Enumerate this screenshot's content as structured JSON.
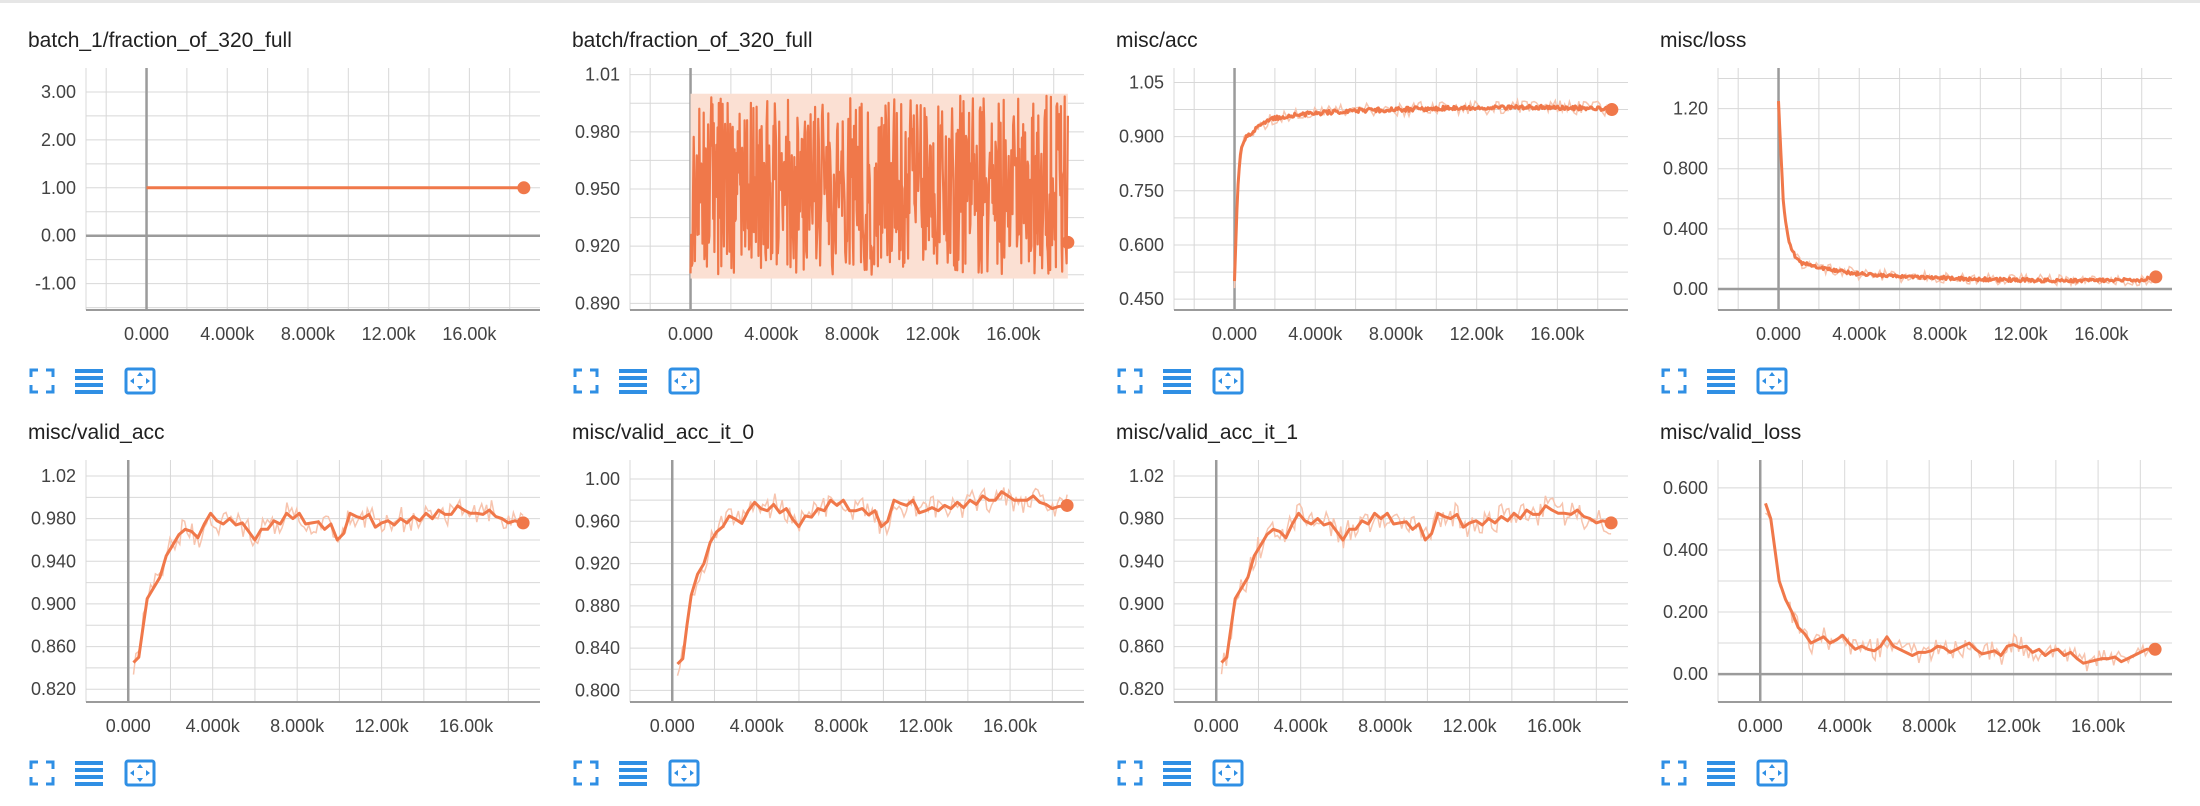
{
  "theme": {
    "line": "#f0784a",
    "smoothed_raw": "#f7c4ae",
    "band": "#fbe0d3",
    "grid": "#d8d8d8",
    "axis": "#9b9b9b",
    "icon": "#2f8fe4"
  },
  "toolbar_icons": [
    "expand-icon",
    "list-icon",
    "fit-domain-icon"
  ],
  "x_ticks": [
    "0.000",
    "4.000k",
    "8.000k",
    "12.00k",
    "16.00k"
  ],
  "chart_data": [
    {
      "type": "line",
      "title": "batch_1/fraction_of_320_full",
      "xlim": [
        -3000,
        19500
      ],
      "ylim": [
        -1.55,
        3.5
      ],
      "y_ticks": [
        {
          "v": 3,
          "label": "3.00"
        },
        {
          "v": 2,
          "label": "2.00"
        },
        {
          "v": 1,
          "label": "1.00"
        },
        {
          "v": 0,
          "label": "0.00"
        },
        {
          "v": -1,
          "label": "-1.00"
        }
      ],
      "noise": 0,
      "smooth_noise": 0,
      "band": null,
      "series": [
        {
          "x": [
            0,
            18700
          ],
          "y": [
            1.0,
            1.0
          ]
        }
      ]
    },
    {
      "type": "line",
      "title": "batch/fraction_of_320_full",
      "xlim": [
        -3000,
        19500
      ],
      "ylim": [
        0.8865,
        1.0135
      ],
      "y_ticks": [
        {
          "v": 1.01,
          "label": "1.01"
        },
        {
          "v": 0.98,
          "label": "0.980"
        },
        {
          "v": 0.95,
          "label": "0.950"
        },
        {
          "v": 0.92,
          "label": "0.920"
        },
        {
          "v": 0.89,
          "label": "0.890"
        }
      ],
      "noise": 0,
      "smooth_noise": 0,
      "band": [
        0.903,
        1.0
      ],
      "noisy_range": [
        0.905,
        0.999
      ],
      "noisy_n": 600,
      "series": [
        {
          "x": [
            18700
          ],
          "y": [
            0.922
          ]
        }
      ]
    },
    {
      "type": "line",
      "title": "misc/acc",
      "xlim": [
        -3000,
        19500
      ],
      "ylim": [
        0.42,
        1.09
      ],
      "y_ticks": [
        {
          "v": 1.05,
          "label": "1.05"
        },
        {
          "v": 0.9,
          "label": "0.900"
        },
        {
          "v": 0.75,
          "label": "0.750"
        },
        {
          "v": 0.6,
          "label": "0.600"
        },
        {
          "v": 0.45,
          "label": "0.450"
        }
      ],
      "noise": 0.006,
      "smooth_noise": 0.02,
      "band": null,
      "series": [
        {
          "x": [
            0,
            150,
            300,
            600,
            1000,
            1500,
            2000,
            3000,
            4000,
            6000,
            8000,
            10000,
            12000,
            14000,
            16000,
            18000,
            18700
          ],
          "y": [
            0.5,
            0.75,
            0.86,
            0.9,
            0.92,
            0.94,
            0.95,
            0.96,
            0.965,
            0.972,
            0.975,
            0.978,
            0.98,
            0.982,
            0.98,
            0.979,
            0.975
          ]
        }
      ]
    },
    {
      "type": "line",
      "title": "misc/loss",
      "xlim": [
        -3000,
        19500
      ],
      "ylim": [
        -0.14,
        1.47
      ],
      "y_ticks": [
        {
          "v": 1.2,
          "label": "1.20"
        },
        {
          "v": 0.8,
          "label": "0.800"
        },
        {
          "v": 0.4,
          "label": "0.400"
        },
        {
          "v": 0.0,
          "label": "0.00"
        }
      ],
      "noise": 0.012,
      "smooth_noise": 0.04,
      "band": null,
      "series": [
        {
          "x": [
            0,
            100,
            250,
            500,
            800,
            1200,
            2000,
            3000,
            4000,
            6000,
            8000,
            10000,
            12000,
            14000,
            16000,
            18000,
            18700
          ],
          "y": [
            1.25,
            0.95,
            0.55,
            0.32,
            0.22,
            0.17,
            0.14,
            0.12,
            0.1,
            0.085,
            0.075,
            0.065,
            0.06,
            0.055,
            0.055,
            0.06,
            0.08
          ]
        }
      ]
    },
    {
      "type": "line",
      "title": "misc/valid_acc",
      "xlim": [
        -2000,
        19500
      ],
      "ylim": [
        0.808,
        1.035
      ],
      "y_ticks": [
        {
          "v": 1.02,
          "label": "1.02"
        },
        {
          "v": 0.98,
          "label": "0.980"
        },
        {
          "v": 0.94,
          "label": "0.940"
        },
        {
          "v": 0.9,
          "label": "0.900"
        },
        {
          "v": 0.86,
          "label": "0.860"
        },
        {
          "v": 0.82,
          "label": "0.820"
        }
      ],
      "noise": 0,
      "smooth_noise": 0.012,
      "band": null,
      "series": [
        {
          "x": [
            250,
            500,
            700,
            900,
            1200,
            1500,
            1800,
            2100,
            2400,
            2700,
            3000,
            3300,
            3600,
            3900,
            4200,
            4500,
            4800,
            5100,
            5400,
            5700,
            6000,
            6300,
            6600,
            6900,
            7200,
            7500,
            7800,
            8100,
            8400,
            8700,
            9000,
            9300,
            9600,
            9900,
            10200,
            10500,
            10800,
            11100,
            11400,
            11700,
            12000,
            12300,
            12600,
            12900,
            13200,
            13500,
            13800,
            14100,
            14400,
            14700,
            15000,
            15300,
            15600,
            15900,
            16200,
            16500,
            16800,
            17100,
            17400,
            17700,
            18000,
            18300,
            18700
          ],
          "y": [
            0.845,
            0.85,
            0.878,
            0.905,
            0.915,
            0.925,
            0.945,
            0.955,
            0.965,
            0.97,
            0.968,
            0.962,
            0.975,
            0.985,
            0.978,
            0.975,
            0.98,
            0.974,
            0.976,
            0.968,
            0.96,
            0.97,
            0.97,
            0.978,
            0.975,
            0.985,
            0.98,
            0.985,
            0.975,
            0.976,
            0.977,
            0.97,
            0.975,
            0.96,
            0.966,
            0.985,
            0.982,
            0.98,
            0.984,
            0.972,
            0.976,
            0.978,
            0.974,
            0.98,
            0.976,
            0.982,
            0.978,
            0.985,
            0.98,
            0.988,
            0.984,
            0.984,
            0.992,
            0.988,
            0.985,
            0.985,
            0.984,
            0.988,
            0.982,
            0.98,
            0.976,
            0.978,
            0.976
          ]
        }
      ]
    },
    {
      "type": "line",
      "title": "misc/valid_acc_it_0",
      "xlim": [
        -2000,
        19500
      ],
      "ylim": [
        0.789,
        1.018
      ],
      "y_ticks": [
        {
          "v": 1.0,
          "label": "1.00"
        },
        {
          "v": 0.96,
          "label": "0.960"
        },
        {
          "v": 0.92,
          "label": "0.920"
        },
        {
          "v": 0.88,
          "label": "0.880"
        },
        {
          "v": 0.84,
          "label": "0.840"
        },
        {
          "v": 0.8,
          "label": "0.800"
        }
      ],
      "noise": 0,
      "smooth_noise": 0.012,
      "band": null,
      "series": [
        {
          "x": [
            250,
            500,
            700,
            900,
            1200,
            1500,
            1800,
            2100,
            2400,
            2700,
            3000,
            3300,
            3600,
            3900,
            4200,
            4500,
            4800,
            5100,
            5400,
            5700,
            6000,
            6300,
            6600,
            6900,
            7200,
            7500,
            7800,
            8100,
            8400,
            8700,
            9000,
            9300,
            9600,
            9900,
            10200,
            10500,
            10800,
            11100,
            11400,
            11700,
            12000,
            12300,
            12600,
            12900,
            13200,
            13500,
            13800,
            14100,
            14400,
            14700,
            15000,
            15300,
            15600,
            15900,
            16200,
            16500,
            16800,
            17100,
            17400,
            17700,
            18000,
            18300,
            18700
          ],
          "y": [
            0.825,
            0.83,
            0.862,
            0.89,
            0.91,
            0.92,
            0.94,
            0.95,
            0.955,
            0.965,
            0.962,
            0.958,
            0.97,
            0.978,
            0.972,
            0.97,
            0.976,
            0.968,
            0.972,
            0.962,
            0.955,
            0.965,
            0.964,
            0.972,
            0.97,
            0.98,
            0.975,
            0.98,
            0.97,
            0.97,
            0.972,
            0.966,
            0.97,
            0.955,
            0.96,
            0.98,
            0.977,
            0.975,
            0.98,
            0.968,
            0.97,
            0.973,
            0.97,
            0.975,
            0.972,
            0.978,
            0.973,
            0.98,
            0.976,
            0.984,
            0.98,
            0.98,
            0.988,
            0.984,
            0.98,
            0.98,
            0.98,
            0.984,
            0.978,
            0.976,
            0.972,
            0.974,
            0.975
          ]
        }
      ]
    },
    {
      "type": "line",
      "title": "misc/valid_acc_it_1",
      "xlim": [
        -2000,
        19500
      ],
      "ylim": [
        0.808,
        1.035
      ],
      "y_ticks": [
        {
          "v": 1.02,
          "label": "1.02"
        },
        {
          "v": 0.98,
          "label": "0.980"
        },
        {
          "v": 0.94,
          "label": "0.940"
        },
        {
          "v": 0.9,
          "label": "0.900"
        },
        {
          "v": 0.86,
          "label": "0.860"
        },
        {
          "v": 0.82,
          "label": "0.820"
        }
      ],
      "noise": 0,
      "smooth_noise": 0.012,
      "band": null,
      "series": [
        {
          "x": [
            250,
            500,
            700,
            900,
            1200,
            1500,
            1800,
            2100,
            2400,
            2700,
            3000,
            3300,
            3600,
            3900,
            4200,
            4500,
            4800,
            5100,
            5400,
            5700,
            6000,
            6300,
            6600,
            6900,
            7200,
            7500,
            7800,
            8100,
            8400,
            8700,
            9000,
            9300,
            9600,
            9900,
            10200,
            10500,
            10800,
            11100,
            11400,
            11700,
            12000,
            12300,
            12600,
            12900,
            13200,
            13500,
            13800,
            14100,
            14400,
            14700,
            15000,
            15300,
            15600,
            15900,
            16200,
            16500,
            16800,
            17100,
            17400,
            17700,
            18000,
            18300,
            18700
          ],
          "y": [
            0.845,
            0.85,
            0.878,
            0.905,
            0.915,
            0.925,
            0.945,
            0.955,
            0.965,
            0.97,
            0.968,
            0.962,
            0.975,
            0.985,
            0.978,
            0.975,
            0.98,
            0.974,
            0.976,
            0.968,
            0.96,
            0.97,
            0.97,
            0.978,
            0.975,
            0.985,
            0.98,
            0.985,
            0.975,
            0.976,
            0.977,
            0.97,
            0.975,
            0.96,
            0.966,
            0.985,
            0.982,
            0.98,
            0.984,
            0.972,
            0.976,
            0.978,
            0.974,
            0.98,
            0.976,
            0.982,
            0.978,
            0.985,
            0.98,
            0.988,
            0.984,
            0.984,
            0.992,
            0.988,
            0.985,
            0.985,
            0.984,
            0.988,
            0.982,
            0.98,
            0.976,
            0.978,
            0.976
          ]
        }
      ]
    },
    {
      "type": "line",
      "title": "misc/valid_loss",
      "xlim": [
        -2000,
        19500
      ],
      "ylim": [
        -0.09,
        0.69
      ],
      "y_ticks": [
        {
          "v": 0.6,
          "label": "0.600"
        },
        {
          "v": 0.4,
          "label": "0.400"
        },
        {
          "v": 0.2,
          "label": "0.200"
        },
        {
          "v": 0.0,
          "label": "0.00"
        }
      ],
      "noise": 0,
      "smooth_noise": 0.035,
      "band": null,
      "series": [
        {
          "x": [
            250,
            500,
            700,
            900,
            1200,
            1500,
            1800,
            2100,
            2400,
            2700,
            3000,
            3300,
            3600,
            3900,
            4200,
            4500,
            4800,
            5100,
            5400,
            5700,
            6000,
            6300,
            6600,
            6900,
            7200,
            7500,
            7800,
            8100,
            8400,
            8700,
            9000,
            9300,
            9600,
            9900,
            10200,
            10500,
            10800,
            11100,
            11400,
            11700,
            12000,
            12300,
            12600,
            12900,
            13200,
            13500,
            13800,
            14100,
            14400,
            14700,
            15000,
            15300,
            15600,
            15900,
            16200,
            16500,
            16800,
            17100,
            17400,
            17700,
            18000,
            18300,
            18700
          ],
          "y": [
            0.55,
            0.5,
            0.4,
            0.3,
            0.24,
            0.2,
            0.15,
            0.13,
            0.1,
            0.11,
            0.12,
            0.1,
            0.11,
            0.125,
            0.1,
            0.08,
            0.09,
            0.08,
            0.075,
            0.09,
            0.12,
            0.09,
            0.08,
            0.07,
            0.06,
            0.07,
            0.07,
            0.075,
            0.09,
            0.085,
            0.07,
            0.08,
            0.09,
            0.1,
            0.08,
            0.065,
            0.07,
            0.075,
            0.06,
            0.09,
            0.095,
            0.085,
            0.09,
            0.07,
            0.08,
            0.06,
            0.075,
            0.08,
            0.06,
            0.07,
            0.05,
            0.035,
            0.04,
            0.045,
            0.05,
            0.05,
            0.055,
            0.04,
            0.05,
            0.06,
            0.07,
            0.08,
            0.08
          ]
        }
      ]
    }
  ]
}
